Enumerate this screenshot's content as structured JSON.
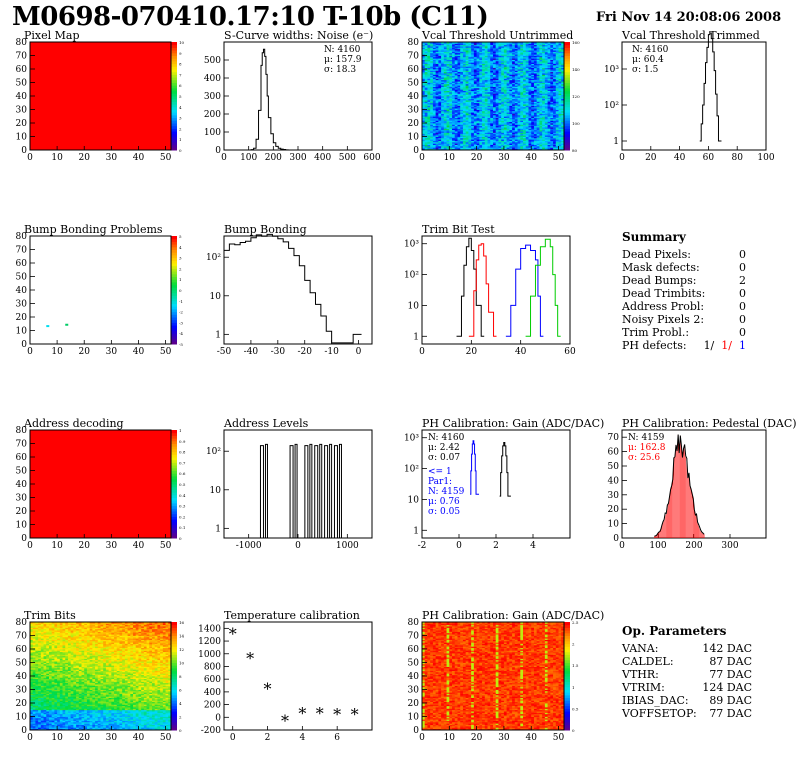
{
  "header": {
    "title": "M0698-070410.17:10 T-10b (C11)",
    "datetime": "Fri Nov 14 20:08:06 2008"
  },
  "colors": {
    "red": "#ff0000",
    "blue": "#0000ff",
    "green": "#00cc00",
    "black": "#000000"
  },
  "chart_data": [
    {
      "id": "pixel_map",
      "type": "heatmap",
      "title": "Pixel Map",
      "xlim": [
        0,
        52
      ],
      "ylim": [
        0,
        80
      ],
      "xticks": [
        "0",
        "10",
        "20",
        "30",
        "40",
        "50"
      ],
      "yticks": [
        "0",
        "10",
        "20",
        "30",
        "40",
        "50",
        "60",
        "70",
        "80"
      ],
      "fill": "uniform red",
      "zticks": [
        "0",
        "1",
        "2",
        "3",
        "4",
        "5",
        "6",
        "7",
        "8",
        "9",
        "10"
      ]
    },
    {
      "id": "scurve",
      "type": "bar",
      "title": "S-Curve widths: Noise (e⁻)",
      "xlim": [
        0,
        600
      ],
      "ylim": [
        0,
        600
      ],
      "xticks": [
        "0",
        "100",
        "200",
        "300",
        "400",
        "500",
        "600"
      ],
      "yticks": [
        "0",
        "100",
        "200",
        "300",
        "400",
        "500"
      ],
      "stats": [
        "N: 4160",
        "μ: 157.9",
        "σ: 18.3"
      ],
      "x": [
        100,
        110,
        120,
        130,
        140,
        150,
        155,
        160,
        165,
        170,
        175,
        180,
        190,
        200,
        210,
        220,
        230,
        240,
        250,
        260
      ],
      "values": [
        0,
        2,
        10,
        60,
        220,
        470,
        540,
        560,
        520,
        420,
        300,
        180,
        90,
        40,
        20,
        10,
        5,
        3,
        1,
        0
      ]
    },
    {
      "id": "vcal_untrimmed",
      "type": "heatmap",
      "title": "Vcal Threshold Untrimmed",
      "xlim": [
        0,
        52
      ],
      "ylim": [
        0,
        80
      ],
      "xticks": [
        "0",
        "10",
        "20",
        "30",
        "40",
        "50"
      ],
      "yticks": [
        "0",
        "10",
        "20",
        "30",
        "40",
        "50",
        "60",
        "70",
        "80"
      ],
      "zticks": [
        "80",
        "100",
        "120",
        "140",
        "160"
      ]
    },
    {
      "id": "vcal_trimmed",
      "type": "bar",
      "title": "Vcal Threshold Trimmed",
      "log": true,
      "xlim": [
        0,
        100
      ],
      "xticks": [
        "0",
        "20",
        "40",
        "60",
        "80",
        "100"
      ],
      "yticks": [
        "1",
        "10²",
        "10³"
      ],
      "stats": [
        "N: 4160",
        "μ: 60.4",
        "σ:  1.5"
      ],
      "x": [
        54,
        55,
        56,
        57,
        58,
        59,
        60,
        61,
        62,
        63,
        64,
        65,
        66,
        67
      ],
      "values": [
        1,
        3,
        10,
        40,
        150,
        400,
        900,
        1000,
        700,
        300,
        90,
        20,
        5,
        1
      ]
    },
    {
      "id": "bump_problems",
      "type": "heatmap",
      "title": "Bump Bonding Problems",
      "xlim": [
        0,
        52
      ],
      "ylim": [
        0,
        80
      ],
      "xticks": [
        "0",
        "10",
        "20",
        "30",
        "40",
        "50"
      ],
      "yticks": [
        "0",
        "10",
        "20",
        "30",
        "40",
        "50",
        "60",
        "70",
        "80"
      ],
      "zticks": [
        "-5",
        "-4",
        "-3",
        "-2",
        "-1",
        "0",
        "1",
        "2",
        "3",
        "4",
        "5"
      ],
      "points": [
        {
          "x": 6,
          "y": 14,
          "c": "#00ddee"
        },
        {
          "x": 13,
          "y": 15,
          "c": "#00cc66"
        }
      ]
    },
    {
      "id": "bump_bonding",
      "type": "bar",
      "title": "Bump Bonding",
      "log": true,
      "xlim": [
        -50,
        5
      ],
      "xticks": [
        "-50",
        "-40",
        "-30",
        "-20",
        "-10",
        "0"
      ],
      "yticks": [
        "1",
        "10",
        "10²"
      ],
      "x": [
        -50,
        -48,
        -46,
        -44,
        -42,
        -40,
        -38,
        -36,
        -34,
        -32,
        -30,
        -28,
        -26,
        -24,
        -22,
        -20,
        -18,
        -16,
        -14,
        -12,
        -10,
        -2,
        0
      ],
      "values": [
        150,
        220,
        210,
        240,
        260,
        320,
        380,
        350,
        390,
        350,
        300,
        250,
        170,
        110,
        60,
        25,
        12,
        6,
        3,
        1.2,
        0,
        1,
        1
      ]
    },
    {
      "id": "trim_bit_test",
      "type": "line",
      "title": "Trim Bit Test",
      "log": true,
      "xlim": [
        0,
        60
      ],
      "xticks": [
        "0",
        "20",
        "40",
        "60"
      ],
      "yticks": [
        "1",
        "10",
        "10²",
        "10³"
      ],
      "series": [
        {
          "color": "#000000",
          "x": [
            14,
            16,
            17,
            18,
            19,
            20,
            21,
            22,
            24
          ],
          "values": [
            1,
            20,
            200,
            800,
            1500,
            600,
            150,
            10,
            1
          ]
        },
        {
          "color": "#ff0000",
          "x": [
            19,
            21,
            22,
            23,
            24,
            25,
            26,
            27,
            29
          ],
          "values": [
            1,
            30,
            300,
            900,
            1000,
            400,
            50,
            6,
            1
          ]
        },
        {
          "color": "#0000ff",
          "x": [
            34,
            36,
            38,
            40,
            42,
            44,
            46,
            47,
            48
          ],
          "values": [
            1,
            10,
            150,
            700,
            900,
            600,
            300,
            20,
            1
          ]
        },
        {
          "color": "#00cc00",
          "x": [
            42,
            44,
            46,
            48,
            50,
            52,
            53,
            54,
            55
          ],
          "values": [
            1,
            20,
            200,
            800,
            1400,
            800,
            100,
            10,
            1
          ]
        }
      ]
    },
    {
      "id": "address_decoding",
      "type": "heatmap",
      "title": "Address decoding",
      "xlim": [
        0,
        52
      ],
      "ylim": [
        0,
        80
      ],
      "xticks": [
        "0",
        "10",
        "20",
        "30",
        "40",
        "50"
      ],
      "yticks": [
        "0",
        "10",
        "20",
        "30",
        "40",
        "50",
        "60",
        "70",
        "80"
      ],
      "fill": "uniform red",
      "zticks": [
        "0",
        "0.1",
        "0.2",
        "0.3",
        "0.4",
        "0.5",
        "0.6",
        "0.7",
        "0.8",
        "0.9",
        "1"
      ]
    },
    {
      "id": "address_levels",
      "type": "line",
      "title": "Address Levels",
      "log": true,
      "xlim": [
        -1500,
        1500
      ],
      "xticks": [
        "-1000",
        "0",
        "1000"
      ],
      "yticks": [
        "1",
        "10",
        "10²"
      ],
      "peaks": [
        -700,
        -100,
        200,
        400,
        600,
        800
      ]
    },
    {
      "id": "ph_gain",
      "type": "line",
      "title": "PH Calibration: Gain (ADC/DAC)",
      "log": true,
      "xlim": [
        -2,
        6
      ],
      "xticks": [
        "-2",
        "0",
        "2",
        "4"
      ],
      "yticks": [
        "1",
        "10",
        "10²",
        "10³"
      ],
      "stats": [
        "N: 4160",
        "μ: 2.42",
        "σ: 0.07"
      ],
      "stats2": [
        "<= 1",
        "Par1:",
        "N: 4159",
        "μ: 0.76",
        "σ: 0.05"
      ],
      "series": [
        {
          "color": "#000000",
          "center": 2.42,
          "width": 0.07,
          "peak": 700
        },
        {
          "color": "#0000ff",
          "center": 0.76,
          "width": 0.05,
          "peak": 800
        }
      ]
    },
    {
      "id": "ph_pedestal",
      "type": "bar",
      "title": "PH Calibration: Pedestal (DAC)",
      "xlim": [
        0,
        400
      ],
      "ylim": [
        0,
        75
      ],
      "xticks": [
        "0",
        "100",
        "200",
        "300"
      ],
      "yticks": [
        "0",
        "10",
        "20",
        "30",
        "40",
        "50",
        "60",
        "70"
      ],
      "stats": [
        "N: 4159",
        "μ: 162.8",
        "σ: 25.6"
      ],
      "center": 162.8,
      "width": 25.6
    },
    {
      "id": "trim_bits",
      "type": "heatmap",
      "title": "Trim Bits",
      "xlim": [
        0,
        52
      ],
      "ylim": [
        0,
        80
      ],
      "xticks": [
        "0",
        "10",
        "20",
        "30",
        "40",
        "50"
      ],
      "yticks": [
        "0",
        "10",
        "20",
        "30",
        "40",
        "50",
        "60",
        "70",
        "80"
      ],
      "zticks": [
        "0",
        "2",
        "4",
        "6",
        "8",
        "10",
        "12",
        "14",
        "16"
      ]
    },
    {
      "id": "temperature",
      "type": "scatter",
      "title": "Temperature calibration",
      "xlim": [
        -0.5,
        8
      ],
      "ylim": [
        -200,
        1500
      ],
      "xticks": [
        "0",
        "2",
        "4",
        "6"
      ],
      "yticks": [
        "-200",
        "0",
        "200",
        "400",
        "600",
        "800",
        "1000",
        "1200",
        "1400"
      ],
      "x": [
        0,
        1,
        2,
        3,
        4,
        5,
        6,
        7
      ],
      "values": [
        1300,
        920,
        440,
        -70,
        50,
        50,
        40,
        40
      ]
    },
    {
      "id": "ph_gain_map",
      "type": "heatmap",
      "title": "PH Calibration: Gain (ADC/DAC)",
      "xlim": [
        0,
        52
      ],
      "ylim": [
        0,
        80
      ],
      "xticks": [
        "0",
        "10",
        "20",
        "30",
        "40",
        "50"
      ],
      "yticks": [
        "0",
        "10",
        "20",
        "30",
        "40",
        "50",
        "60",
        "70",
        "80"
      ],
      "zticks": [
        "0",
        "0.5",
        "1",
        "1.5",
        "2",
        "2.5"
      ]
    }
  ],
  "summary": {
    "title": "Summary",
    "rows": [
      {
        "label": "Dead Pixels:",
        "value": "0"
      },
      {
        "label": "Mask defects:",
        "value": "0"
      },
      {
        "label": "Dead Bumps:",
        "value": "2"
      },
      {
        "label": "Dead Trimbits:",
        "value": "0"
      },
      {
        "label": "Address Probl:",
        "value": "0"
      },
      {
        "label": "Noisy Pixels 2:",
        "value": "0"
      },
      {
        "label": "Trim Probl.:",
        "value": "0"
      }
    ],
    "ph_defects": {
      "label": "PH defects:",
      "v1": "1/",
      "v2": "1/",
      "v3": "1"
    }
  },
  "op_params": {
    "title": "Op. Parameters",
    "rows": [
      {
        "label": "VANA:",
        "value": "142 DAC"
      },
      {
        "label": "CALDEL:",
        "value": "87 DAC"
      },
      {
        "label": "VTHR:",
        "value": "77 DAC"
      },
      {
        "label": "VTRIM:",
        "value": "124 DAC"
      },
      {
        "label": "IBIAS_DAC:",
        "value": "89 DAC"
      },
      {
        "label": "VOFFSETOP:",
        "value": "77 DAC"
      }
    ]
  }
}
